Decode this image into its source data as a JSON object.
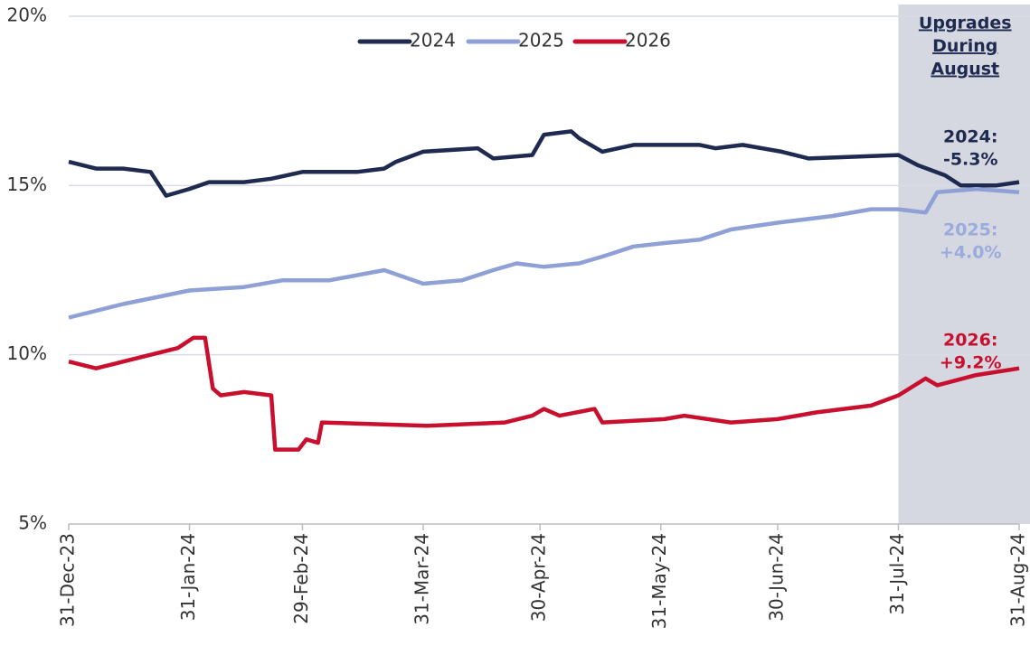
{
  "chart_data": {
    "type": "line",
    "xlim": [
      "2023-12-31",
      "2024-08-31"
    ],
    "xticks": [
      {
        "value": "2023-12-31",
        "label": "31-Dec-23"
      },
      {
        "value": "2024-01-31",
        "label": "31-Jan-24"
      },
      {
        "value": "2024-02-29",
        "label": "29-Feb-24"
      },
      {
        "value": "2024-03-31",
        "label": "31-Mar-24"
      },
      {
        "value": "2024-04-30",
        "label": "30-Apr-24"
      },
      {
        "value": "2024-05-31",
        "label": "31-May-24"
      },
      {
        "value": "2024-06-30",
        "label": "30-Jun-24"
      },
      {
        "value": "2024-07-31",
        "label": "31-Jul-24"
      },
      {
        "value": "2024-08-31",
        "label": "31-Aug-24"
      }
    ],
    "ylim": [
      5,
      20
    ],
    "yticks": [
      {
        "value": 5,
        "label": "5%"
      },
      {
        "value": 10,
        "label": "10%"
      },
      {
        "value": 15,
        "label": "15%"
      },
      {
        "value": 20,
        "label": "20%"
      }
    ],
    "grid": true,
    "legend": "top",
    "series": [
      {
        "name": "2024",
        "color": "#1f2a50",
        "x": [
          "2023-12-31",
          "2024-01-07",
          "2024-01-14",
          "2024-01-21",
          "2024-01-25",
          "2024-01-31",
          "2024-02-05",
          "2024-02-14",
          "2024-02-21",
          "2024-02-29",
          "2024-03-14",
          "2024-03-21",
          "2024-03-24",
          "2024-03-31",
          "2024-04-14",
          "2024-04-18",
          "2024-04-28",
          "2024-05-01",
          "2024-05-08",
          "2024-05-10",
          "2024-05-16",
          "2024-05-24",
          "2024-06-10",
          "2024-06-14",
          "2024-06-21",
          "2024-07-01",
          "2024-07-08",
          "2024-07-31",
          "2024-08-05",
          "2024-08-12",
          "2024-08-16",
          "2024-08-25",
          "2024-08-31"
        ],
        "values": [
          15.7,
          15.5,
          15.5,
          15.4,
          14.7,
          14.9,
          15.1,
          15.1,
          15.2,
          15.4,
          15.4,
          15.5,
          15.7,
          16.0,
          16.1,
          15.8,
          15.9,
          16.5,
          16.6,
          16.4,
          16.0,
          16.2,
          16.2,
          16.1,
          16.2,
          16.0,
          15.8,
          15.9,
          15.6,
          15.3,
          15.0,
          15.0,
          15.1
        ]
      },
      {
        "name": "2025",
        "color": "#8ea0d6",
        "x": [
          "2023-12-31",
          "2024-01-14",
          "2024-01-31",
          "2024-02-14",
          "2024-02-24",
          "2024-03-07",
          "2024-03-21",
          "2024-03-31",
          "2024-04-10",
          "2024-04-18",
          "2024-04-24",
          "2024-05-01",
          "2024-05-10",
          "2024-05-16",
          "2024-05-24",
          "2024-06-01",
          "2024-06-10",
          "2024-06-18",
          "2024-06-30",
          "2024-07-14",
          "2024-07-24",
          "2024-07-31",
          "2024-08-07",
          "2024-08-10",
          "2024-08-20",
          "2024-08-31"
        ],
        "values": [
          11.1,
          11.5,
          11.9,
          12.0,
          12.2,
          12.2,
          12.5,
          12.1,
          12.2,
          12.5,
          12.7,
          12.6,
          12.7,
          12.9,
          13.2,
          13.3,
          13.4,
          13.7,
          13.9,
          14.1,
          14.3,
          14.3,
          14.2,
          14.8,
          14.9,
          14.8
        ]
      },
      {
        "name": "2026",
        "color": "#c8102e",
        "x": [
          "2023-12-31",
          "2024-01-07",
          "2024-01-14",
          "2024-01-21",
          "2024-01-28",
          "2024-02-01",
          "2024-02-04",
          "2024-02-06",
          "2024-02-08",
          "2024-02-14",
          "2024-02-21",
          "2024-02-22",
          "2024-02-28",
          "2024-03-01",
          "2024-03-04",
          "2024-03-05",
          "2024-04-01",
          "2024-04-21",
          "2024-04-28",
          "2024-05-01",
          "2024-05-05",
          "2024-05-14",
          "2024-05-16",
          "2024-06-01",
          "2024-06-06",
          "2024-06-18",
          "2024-06-30",
          "2024-07-10",
          "2024-07-24",
          "2024-07-31",
          "2024-08-07",
          "2024-08-10",
          "2024-08-20",
          "2024-08-31"
        ],
        "values": [
          9.8,
          9.6,
          9.8,
          10.0,
          10.2,
          10.5,
          10.5,
          9.0,
          8.8,
          8.9,
          8.8,
          7.2,
          7.2,
          7.5,
          7.4,
          8.0,
          7.9,
          8.0,
          8.2,
          8.4,
          8.2,
          8.4,
          8.0,
          8.1,
          8.2,
          8.0,
          8.1,
          8.3,
          8.5,
          8.8,
          9.3,
          9.1,
          9.4,
          9.6
        ]
      }
    ],
    "shaded_region": {
      "x": [
        "2024-07-31",
        "2024-08-31"
      ],
      "color": "#d5d8e1",
      "label": [
        "Upgrades",
        "During",
        "August"
      ]
    },
    "annotations": [
      {
        "text": [
          "2024:",
          "-5.3%"
        ],
        "color": "#1f2a50"
      },
      {
        "text": [
          "2025:",
          "+4.0%"
        ],
        "color": "#9aabdc"
      },
      {
        "text": [
          "2026:",
          "+9.2%"
        ],
        "color": "#c8102e"
      }
    ]
  }
}
